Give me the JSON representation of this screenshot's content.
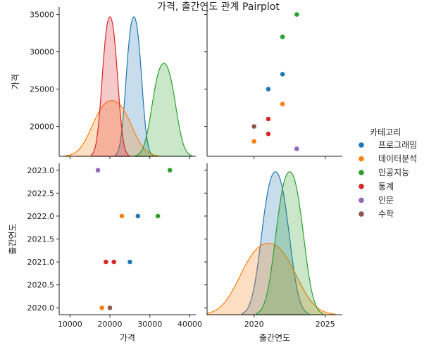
{
  "chart_data": {
    "type": "pairplot",
    "title": "가격, 출간연도 관계 Pairplot",
    "variables": [
      "가격",
      "출간연도"
    ],
    "legend": {
      "title": "카테고리",
      "position": "right",
      "entries": [
        {
          "name": "프로그래밍",
          "color": "#1f77b4"
        },
        {
          "name": "데이터분석",
          "color": "#ff7f0e"
        },
        {
          "name": "인공지능",
          "color": "#2ca02c"
        },
        {
          "name": "통계",
          "color": "#d62728"
        },
        {
          "name": "인문",
          "color": "#9467bd"
        },
        {
          "name": "수학",
          "color": "#8c564b"
        }
      ]
    },
    "points": [
      {
        "category": "프로그래밍",
        "price": 25000,
        "year": 2021
      },
      {
        "category": "프로그래밍",
        "price": 27000,
        "year": 2022
      },
      {
        "category": "데이터분석",
        "price": 23000,
        "year": 2022
      },
      {
        "category": "데이터분석",
        "price": 18000,
        "year": 2020
      },
      {
        "category": "인공지능",
        "price": 35000,
        "year": 2023
      },
      {
        "category": "인공지능",
        "price": 32000,
        "year": 2022
      },
      {
        "category": "통계",
        "price": 21000,
        "year": 2021
      },
      {
        "category": "통계",
        "price": 19000,
        "year": 2021
      },
      {
        "category": "인문",
        "price": 17000,
        "year": 2023
      },
      {
        "category": "수학",
        "price": 20000,
        "year": 2020
      }
    ],
    "axes": {
      "price": {
        "label": "가격",
        "range": [
          7300,
          41500
        ],
        "ticks": [
          10000,
          20000,
          30000,
          40000
        ],
        "tick_labels": [
          "10000",
          "20000",
          "30000",
          "40000"
        ]
      },
      "price_y": {
        "label": "가격",
        "range": [
          16000,
          36000
        ],
        "ticks": [
          20000,
          25000,
          30000,
          35000
        ],
        "tick_labels": [
          "20000",
          "25000",
          "30000",
          "35000"
        ]
      },
      "year_y": {
        "label": "출간연도",
        "range": [
          2019.85,
          2023.15
        ],
        "ticks": [
          2020.0,
          2020.5,
          2021.0,
          2021.5,
          2022.0,
          2022.5,
          2023.0
        ],
        "tick_labels": [
          "2020.0",
          "2020.5",
          "2021.0",
          "2021.5",
          "2022.0",
          "2022.5",
          "2023.0"
        ]
      },
      "year_x": {
        "label": "출간연도",
        "range": [
          2016.7,
          2026.2
        ],
        "ticks": [
          2020,
          2025
        ],
        "tick_labels": [
          "2020",
          "2025"
        ]
      }
    },
    "grid": false
  }
}
